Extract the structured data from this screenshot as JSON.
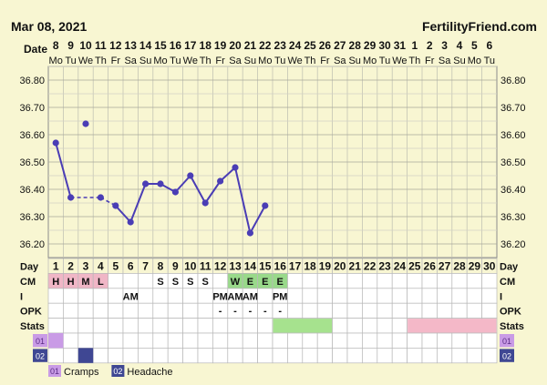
{
  "header": {
    "date": "Mar 08, 2021",
    "site": "FertilityFriend.com"
  },
  "labels": {
    "date": "Date",
    "day": "Day",
    "cm": "CM",
    "i": "I",
    "opk": "OPK",
    "stats": "Stats"
  },
  "date_row": {
    "numbers": [
      "8",
      "9",
      "10",
      "11",
      "12",
      "13",
      "14",
      "15",
      "16",
      "17",
      "18",
      "19",
      "20",
      "21",
      "22",
      "23",
      "24",
      "25",
      "26",
      "27",
      "28",
      "29",
      "30",
      "31",
      "1",
      "2",
      "3",
      "4",
      "5",
      "6"
    ],
    "weekdays": [
      "Mo",
      "Tu",
      "We",
      "Th",
      "Fr",
      "Sa",
      "Su",
      "Mo",
      "Tu",
      "We",
      "Th",
      "Fr",
      "Sa",
      "Su",
      "Mo",
      "Tu",
      "We",
      "Th",
      "Fr",
      "Sa",
      "Su",
      "Mo",
      "Tu",
      "We",
      "Th",
      "Fr",
      "Sa",
      "Su",
      "Mo",
      "Tu"
    ]
  },
  "cycle_days": [
    "1",
    "2",
    "3",
    "4",
    "5",
    "6",
    "7",
    "8",
    "9",
    "10",
    "11",
    "12",
    "13",
    "14",
    "15",
    "16",
    "17",
    "18",
    "19",
    "20",
    "21",
    "22",
    "23",
    "24",
    "25",
    "26",
    "27",
    "28",
    "29",
    "30"
  ],
  "cm_row": {
    "entries": [
      {
        "day": 1,
        "text": "H",
        "color": "#f0b6c6"
      },
      {
        "day": 2,
        "text": "H",
        "color": "#f0b6c6"
      },
      {
        "day": 3,
        "text": "M",
        "color": "#f0b6c6"
      },
      {
        "day": 4,
        "text": "L",
        "color": "#f0b6c6"
      },
      {
        "day": 8,
        "text": "S",
        "color": ""
      },
      {
        "day": 9,
        "text": "S",
        "color": ""
      },
      {
        "day": 10,
        "text": "S",
        "color": ""
      },
      {
        "day": 11,
        "text": "S",
        "color": ""
      },
      {
        "day": 13,
        "text": "W",
        "color": "#99d98a"
      },
      {
        "day": 14,
        "text": "E",
        "color": "#99d98a"
      },
      {
        "day": 15,
        "text": "E",
        "color": "#99d98a"
      },
      {
        "day": 16,
        "text": "E",
        "color": "#99d98a"
      }
    ]
  },
  "i_row": {
    "entries": [
      {
        "day": 6,
        "text": "AM"
      },
      {
        "day": 12,
        "text": "PM"
      },
      {
        "day": 13,
        "text": "AM"
      },
      {
        "day": 14,
        "text": "AM"
      },
      {
        "day": 16,
        "text": "PM"
      }
    ]
  },
  "opk_row": {
    "entries": [
      {
        "day": 12,
        "text": "-"
      },
      {
        "day": 13,
        "text": "-"
      },
      {
        "day": 14,
        "text": "-"
      },
      {
        "day": 15,
        "text": "-"
      },
      {
        "day": 16,
        "text": "-"
      }
    ]
  },
  "stats_row": {
    "ranges": [
      {
        "from": 16,
        "to": 19,
        "color": "#a6e28e"
      },
      {
        "from": 25,
        "to": 30,
        "color": "#f4b8c8"
      }
    ]
  },
  "symptoms": [
    {
      "code": "01",
      "name": "Cramps",
      "color": "#c99be6",
      "text_color": "#5a2c84",
      "days": [
        1
      ]
    },
    {
      "code": "02",
      "name": "Headache",
      "color": "#3f4793",
      "text_color": "#ffffff",
      "days": [
        3
      ]
    }
  ],
  "chart_data": {
    "type": "line",
    "xlabel": "Day",
    "ylabel": "",
    "x": [
      1,
      2,
      3,
      4,
      5,
      6,
      7,
      8,
      9,
      10,
      11,
      12,
      13,
      14,
      15,
      16
    ],
    "temperatures": [
      36.57,
      36.37,
      36.64,
      36.37,
      36.34,
      36.28,
      36.42,
      36.42,
      36.39,
      36.45,
      36.35,
      36.43,
      36.48,
      36.24,
      36.34
    ],
    "points": [
      {
        "day": 1,
        "temp": 36.57
      },
      {
        "day": 2,
        "temp": 36.37
      },
      {
        "day": 3,
        "temp": 36.64
      },
      {
        "day": 4,
        "temp": 36.37
      },
      {
        "day": 5,
        "temp": 36.34
      },
      {
        "day": 6,
        "temp": 36.28
      },
      {
        "day": 7,
        "temp": 36.42
      },
      {
        "day": 8,
        "temp": 36.42
      },
      {
        "day": 9,
        "temp": 36.39
      },
      {
        "day": 10,
        "temp": 36.45
      },
      {
        "day": 11,
        "temp": 36.35
      },
      {
        "day": 12,
        "temp": 36.43
      },
      {
        "day": 13,
        "temp": 36.48
      },
      {
        "day": 14,
        "temp": 36.24
      },
      {
        "day": 15,
        "temp": 36.34
      }
    ],
    "discarded_days": [
      3
    ],
    "dashed_segments": [
      [
        2,
        4
      ],
      [
        4,
        5
      ]
    ],
    "solid_segments": [
      [
        1,
        2
      ],
      [
        5,
        6
      ],
      [
        6,
        7
      ],
      [
        7,
        8
      ],
      [
        8,
        9
      ],
      [
        9,
        10
      ],
      [
        10,
        11
      ],
      [
        11,
        12
      ],
      [
        12,
        13
      ],
      [
        13,
        14
      ],
      [
        14,
        15
      ]
    ],
    "y_ticks": [
      "36.20",
      "36.30",
      "36.40",
      "36.50",
      "36.60",
      "36.70",
      "36.80"
    ],
    "ylim": [
      36.15,
      36.85
    ],
    "line_color": "#4a3db5",
    "grid": true
  }
}
